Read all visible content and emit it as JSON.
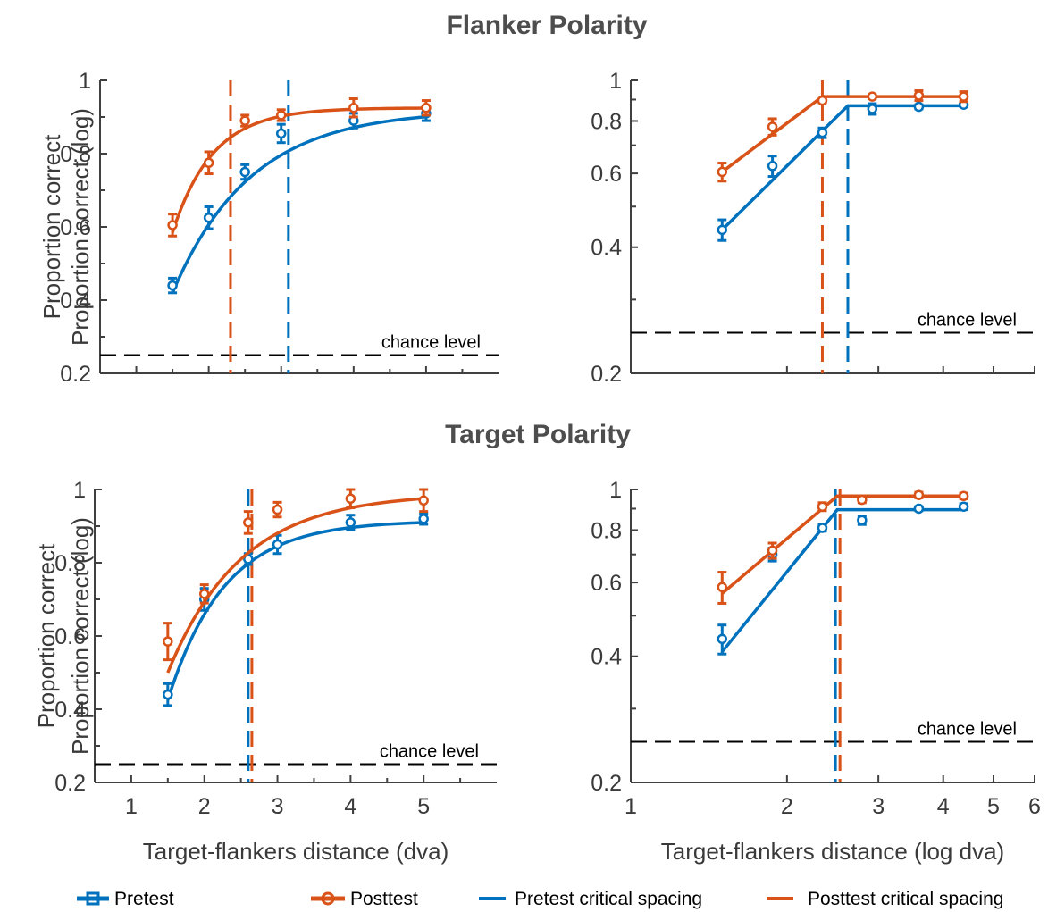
{
  "row_titles": [
    "Flanker Polarity",
    "Target Polarity"
  ],
  "legend": [
    {
      "label": "Pretest",
      "kind": "series",
      "color": "#0072BD"
    },
    {
      "label": "Posttest",
      "kind": "series",
      "color": "#D95319"
    },
    {
      "label": "Pretest critical spacing",
      "kind": "dashed",
      "color": "#0072BD"
    },
    {
      "label": "Posttest critical spacing",
      "kind": "dashed",
      "color": "#D95319"
    }
  ],
  "colors": {
    "pretest": "#0072BD",
    "posttest": "#D95319",
    "chance": "#000000",
    "axis": "#404040"
  },
  "chart_data": [
    {
      "type": "line",
      "row": "Flanker Polarity",
      "ylabel": "Proportion correct",
      "xlabel": "",
      "xscale": "linear",
      "yscale": "linear",
      "xlim": [
        0.5,
        6
      ],
      "ylim": [
        0.2,
        1
      ],
      "xticks": [
        1,
        2,
        3,
        4,
        5
      ],
      "xticklabels": [],
      "yticks": [
        0.4,
        0.6,
        0.8,
        1.0
      ],
      "yticklabels": [
        "0.2",
        "0.4",
        "0.6",
        "0.8",
        "1"
      ],
      "yticks_labeled": [
        0.2,
        0.4,
        0.6,
        0.8,
        1.0
      ],
      "chance_level": 0.25,
      "chance_label": "chance level",
      "series": [
        {
          "name": "Pretest",
          "x": [
            1.5,
            2.0,
            2.5,
            3.0,
            4.0,
            5.0
          ],
          "y": [
            0.44,
            0.625,
            0.75,
            0.855,
            0.89,
            0.91
          ],
          "err": [
            0.02,
            0.03,
            0.02,
            0.025,
            0.02,
            0.02
          ],
          "fit": {
            "asymptote": 0.92,
            "rate": 0.93,
            "x0": 1.5,
            "y0": 0.42
          }
        },
        {
          "name": "Posttest",
          "x": [
            1.5,
            2.0,
            2.5,
            3.0,
            4.0,
            5.0
          ],
          "y": [
            0.605,
            0.775,
            0.89,
            0.905,
            0.925,
            0.925
          ],
          "err": [
            0.03,
            0.03,
            0.015,
            0.015,
            0.025,
            0.02
          ],
          "fit": {
            "asymptote": 0.925,
            "rate": 1.8,
            "x0": 1.5,
            "y0": 0.585
          }
        }
      ],
      "critical_spacing": {
        "Pretest": 3.1,
        "Posttest": 2.3
      }
    },
    {
      "type": "line",
      "row": "Flanker Polarity",
      "ylabel": "Proportion correct (log)",
      "xlabel": "",
      "xscale": "log",
      "yscale": "log",
      "xlim": [
        1,
        6
      ],
      "ylim": [
        0.2,
        1
      ],
      "xticks": [
        1,
        2,
        3,
        4,
        5,
        6
      ],
      "xticklabels": [],
      "yticks_labeled": [
        0.2,
        0.4,
        0.6,
        0.8,
        1.0
      ],
      "yticklabels": [
        "0.2",
        "0.4",
        "0.6",
        "0.8",
        "1"
      ],
      "yticks_minor": [
        0.3,
        0.5,
        0.7,
        0.9
      ],
      "chance_level": 0.25,
      "chance_label": "chance level",
      "series": [
        {
          "name": "Pretest",
          "x": [
            1.5,
            1.875,
            2.34,
            2.92,
            3.59,
            4.38
          ],
          "y": [
            0.44,
            0.625,
            0.75,
            0.855,
            0.865,
            0.875
          ],
          "err": [
            0.025,
            0.035,
            0.02,
            0.025,
            0.01,
            0.01
          ],
          "fit": {
            "break_x": 2.62,
            "plateau": 0.87,
            "x_start": 1.5,
            "y_start": 0.44,
            "x_end": 4.38
          }
        },
        {
          "name": "Posttest",
          "x": [
            1.5,
            1.875,
            2.34,
            2.92,
            3.59,
            4.38
          ],
          "y": [
            0.605,
            0.775,
            0.895,
            0.915,
            0.92,
            0.915
          ],
          "err": [
            0.03,
            0.035,
            0.01,
            0.01,
            0.025,
            0.025
          ],
          "fit": {
            "break_x": 2.34,
            "plateau": 0.915,
            "x_start": 1.5,
            "y_start": 0.605,
            "x_end": 4.38
          }
        }
      ],
      "critical_spacing": {
        "Pretest": 2.62,
        "Posttest": 2.34
      }
    },
    {
      "type": "line",
      "row": "Target Polarity",
      "ylabel": "Proportion correct",
      "xlabel": "Target-flankers distance (dva)",
      "xscale": "linear",
      "yscale": "linear",
      "xlim": [
        0.5,
        6
      ],
      "ylim": [
        0.2,
        1
      ],
      "xticks": [
        1,
        2,
        3,
        4,
        5
      ],
      "xticklabels": [
        "1",
        "2",
        "3",
        "4",
        "5"
      ],
      "yticks_labeled": [
        0.2,
        0.4,
        0.6,
        0.8,
        1.0
      ],
      "yticklabels": [
        "0.2",
        "0.4",
        "0.6",
        "0.8",
        "1"
      ],
      "chance_level": 0.25,
      "chance_label": "chance level",
      "series": [
        {
          "name": "Pretest",
          "x": [
            1.5,
            2.0,
            2.6,
            3.0,
            4.0,
            5.0
          ],
          "y": [
            0.44,
            0.7,
            0.81,
            0.85,
            0.91,
            0.92
          ],
          "err": [
            0.03,
            0.03,
            0.015,
            0.025,
            0.02,
            0.015
          ],
          "fit": {
            "asymptote": 0.915,
            "rate": 1.3,
            "x0": 1.5,
            "y0": 0.425
          }
        },
        {
          "name": "Posttest",
          "x": [
            1.5,
            2.0,
            2.6,
            3.0,
            4.0,
            5.0
          ],
          "y": [
            0.585,
            0.715,
            0.91,
            0.945,
            0.975,
            0.97
          ],
          "err": [
            0.05,
            0.025,
            0.03,
            0.02,
            0.025,
            0.03
          ],
          "fit": {
            "asymptote": 0.99,
            "rate": 1.0,
            "x0": 1.5,
            "y0": 0.5
          }
        }
      ],
      "critical_spacing": {
        "Pretest": 2.6,
        "Posttest": 2.65
      }
    },
    {
      "type": "line",
      "row": "Target Polarity",
      "ylabel": "Proportion correct (log)",
      "xlabel": "Target-flankers distance (log dva)",
      "xscale": "log",
      "yscale": "log",
      "xlim": [
        1,
        6
      ],
      "ylim": [
        0.2,
        1
      ],
      "xticks": [
        1,
        2,
        3,
        4,
        5,
        6
      ],
      "xticklabels": [
        "1",
        "2",
        "3",
        "4",
        "5",
        "6"
      ],
      "yticks_labeled": [
        0.2,
        0.4,
        0.6,
        0.8,
        1.0
      ],
      "yticklabels": [
        "0.2",
        "0.4",
        "0.6",
        "0.8",
        "1"
      ],
      "yticks_minor": [
        0.3,
        0.5,
        0.7,
        0.9
      ],
      "chance_level": 0.25,
      "chance_label": "chance level",
      "series": [
        {
          "name": "Pretest",
          "x": [
            1.5,
            1.875,
            2.34,
            2.79,
            3.59,
            4.38
          ],
          "y": [
            0.44,
            0.7,
            0.81,
            0.845,
            0.9,
            0.91
          ],
          "err": [
            0.035,
            0.025,
            0.015,
            0.02,
            0.01,
            0.015
          ],
          "fit": {
            "break_x": 2.5,
            "plateau": 0.895,
            "x_start": 1.5,
            "y_start": 0.41,
            "x_end": 4.38
          }
        },
        {
          "name": "Posttest",
          "x": [
            1.5,
            1.875,
            2.34,
            2.79,
            3.59,
            4.38
          ],
          "y": [
            0.585,
            0.715,
            0.91,
            0.945,
            0.97,
            0.965
          ],
          "err": [
            0.05,
            0.03,
            0.02,
            0.015,
            0.015,
            0.015
          ],
          "fit": {
            "break_x": 2.5,
            "plateau": 0.965,
            "x_start": 1.5,
            "y_start": 0.565,
            "x_end": 4.38
          }
        }
      ],
      "critical_spacing": {
        "Pretest": 2.48,
        "Posttest": 2.53
      }
    }
  ]
}
